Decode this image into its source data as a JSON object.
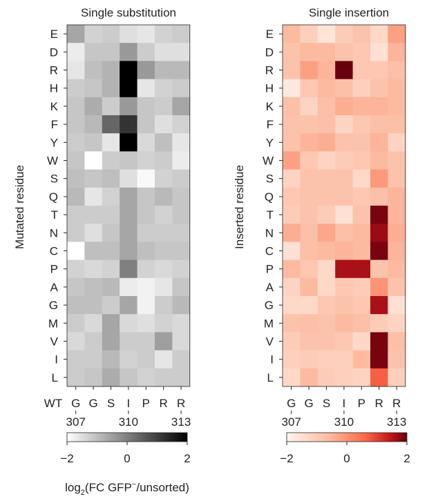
{
  "chart_data": [
    {
      "type": "heatmap",
      "title": "Single substitution",
      "ylabel": "Mutated residue",
      "rows": [
        "E",
        "D",
        "R",
        "H",
        "K",
        "F",
        "Y",
        "W",
        "S",
        "Q",
        "T",
        "N",
        "C",
        "P",
        "A",
        "G",
        "M",
        "V",
        "I",
        "L"
      ],
      "columns": [
        "G",
        "G",
        "S",
        "I",
        "P",
        "R",
        "R"
      ],
      "x_prefix": "WT",
      "x_numbers": [
        "307",
        "310",
        "313"
      ],
      "colormap": "greys",
      "vmin": -2,
      "vmax": 2,
      "values": [
        [
          -0.6,
          -1.3,
          -1.2,
          -1.5,
          -1.6,
          -1.3,
          -1.2
        ],
        [
          -1.7,
          -1.1,
          -1.1,
          -0.4,
          -1.2,
          -1.5,
          -1.5
        ],
        [
          -1.6,
          -1.0,
          -0.8,
          2.0,
          -0.4,
          -0.9,
          -0.9
        ],
        [
          -1.2,
          -1.1,
          -0.8,
          2.0,
          -1.6,
          -1.3,
          -1.2
        ],
        [
          -1.1,
          -0.7,
          -1.2,
          -0.4,
          -1.1,
          -1.2,
          -0.6
        ],
        [
          -1.1,
          -0.9,
          0.4,
          1.2,
          -1.1,
          -1.5,
          -1.3
        ],
        [
          -1.2,
          -1.1,
          -1.6,
          2.0,
          -1.4,
          -1.0,
          -1.6
        ],
        [
          -1.1,
          -2.0,
          -1.2,
          -1.1,
          -1.3,
          -1.2,
          -1.7
        ],
        [
          -1.0,
          -1.1,
          -1.0,
          -1.5,
          -1.9,
          -1.3,
          -1.2
        ],
        [
          -0.9,
          -1.6,
          -1.3,
          -0.6,
          -1.1,
          -0.9,
          -1.1
        ],
        [
          -1.2,
          -1.2,
          -1.2,
          -0.6,
          -1.1,
          -1.3,
          -1.1
        ],
        [
          -1.2,
          -1.5,
          -1.1,
          -0.6,
          -1.2,
          -1.2,
          -1.2
        ],
        [
          -2.0,
          -1.0,
          -1.0,
          -0.6,
          -1.0,
          -1.1,
          -1.1
        ],
        [
          -1.3,
          -1.4,
          -1.3,
          0.0,
          -1.3,
          -1.4,
          -1.3
        ],
        [
          -1.1,
          -1.0,
          -0.9,
          -1.7,
          -1.8,
          -1.6,
          -1.1
        ],
        [
          -1.0,
          -1.0,
          -1.2,
          -0.6,
          -1.8,
          -1.2,
          -0.9
        ],
        [
          -1.2,
          -1.4,
          -0.6,
          -1.4,
          -1.5,
          -1.3,
          -1.4
        ],
        [
          -1.4,
          -1.2,
          -0.6,
          -1.2,
          -1.2,
          -0.5,
          -1.4
        ],
        [
          -1.2,
          -1.2,
          -0.9,
          -1.3,
          -1.2,
          -1.6,
          -1.2
        ],
        [
          -1.2,
          -1.1,
          -0.7,
          -1.1,
          -1.3,
          -1.2,
          -1.2
        ]
      ]
    },
    {
      "type": "heatmap",
      "title": "Single insertion",
      "ylabel": "Inserted residue",
      "rows": [
        "E",
        "D",
        "R",
        "H",
        "K",
        "F",
        "Y",
        "W",
        "S",
        "Q",
        "T",
        "N",
        "C",
        "P",
        "A",
        "G",
        "M",
        "V",
        "I",
        "L"
      ],
      "columns": [
        "G",
        "G",
        "S",
        "I",
        "P",
        "R",
        "R"
      ],
      "x_numbers": [
        "307",
        "310",
        "313"
      ],
      "colormap": "reds",
      "vmin": -2,
      "vmax": 2,
      "values": [
        [
          -0.6,
          -1.1,
          -1.6,
          -1.0,
          -0.8,
          -1.3,
          -0.2
        ],
        [
          -0.8,
          -0.6,
          -0.6,
          -0.8,
          -0.9,
          -1.5,
          -0.5
        ],
        [
          -0.8,
          -0.2,
          -0.5,
          2.0,
          -0.9,
          -0.9,
          -0.7
        ],
        [
          -1.7,
          -0.9,
          -0.6,
          -0.7,
          -1.1,
          -0.8,
          -0.6
        ],
        [
          -0.7,
          -1.2,
          -0.7,
          -0.4,
          -0.5,
          -0.5,
          -0.6
        ],
        [
          -0.8,
          -0.8,
          -0.7,
          -1.2,
          -0.9,
          -0.7,
          -0.7
        ],
        [
          -0.8,
          -0.5,
          -0.4,
          -0.8,
          -0.8,
          -0.5,
          -1.2
        ],
        [
          -0.2,
          -0.9,
          -1.2,
          -1.0,
          -0.9,
          -0.6,
          -0.8
        ],
        [
          -1.2,
          -0.8,
          -0.8,
          -0.8,
          -1.3,
          -0.1,
          -0.8
        ],
        [
          -0.9,
          -0.8,
          -0.8,
          -0.8,
          -0.9,
          -0.7,
          -0.5
        ],
        [
          -1.0,
          -0.8,
          -1.0,
          -1.5,
          -0.8,
          1.9,
          -0.5
        ],
        [
          -0.4,
          -0.7,
          -0.3,
          -0.7,
          -0.6,
          1.7,
          -0.4
        ],
        [
          -1.5,
          -0.7,
          -0.6,
          -0.5,
          -0.6,
          1.9,
          -0.5
        ],
        [
          -0.6,
          -0.9,
          -1.3,
          1.6,
          1.6,
          -0.8,
          -0.6
        ],
        [
          -1.2,
          -0.6,
          -1.3,
          -0.9,
          -1.0,
          0.0,
          -0.8
        ],
        [
          -1.3,
          -1.3,
          -0.9,
          -0.8,
          -0.9,
          1.6,
          -1.5
        ],
        [
          -0.8,
          -0.7,
          -0.8,
          -0.6,
          -0.7,
          -1.0,
          -1.2
        ],
        [
          -1.0,
          -0.8,
          -0.8,
          -0.9,
          -1.3,
          1.9,
          -0.7
        ],
        [
          -1.1,
          -1.0,
          -1.1,
          -1.1,
          -0.6,
          1.9,
          -0.8
        ],
        [
          -1.3,
          -0.6,
          -1.0,
          -1.1,
          -1.2,
          0.7,
          -1.1
        ]
      ]
    }
  ],
  "colorbars": {
    "ticks": [
      "−2",
      "0",
      "2"
    ],
    "label_main": "log",
    "label_sub": "2",
    "label_mid": "(FC GFP",
    "label_sup": "−",
    "label_end": "/unsorted)"
  },
  "colors": {
    "greys_low": "#ffffff",
    "greys_high": "#000000",
    "reds_low": "#fff5f0",
    "reds_mid": "#fb6a4a",
    "reds_high": "#67000d"
  }
}
